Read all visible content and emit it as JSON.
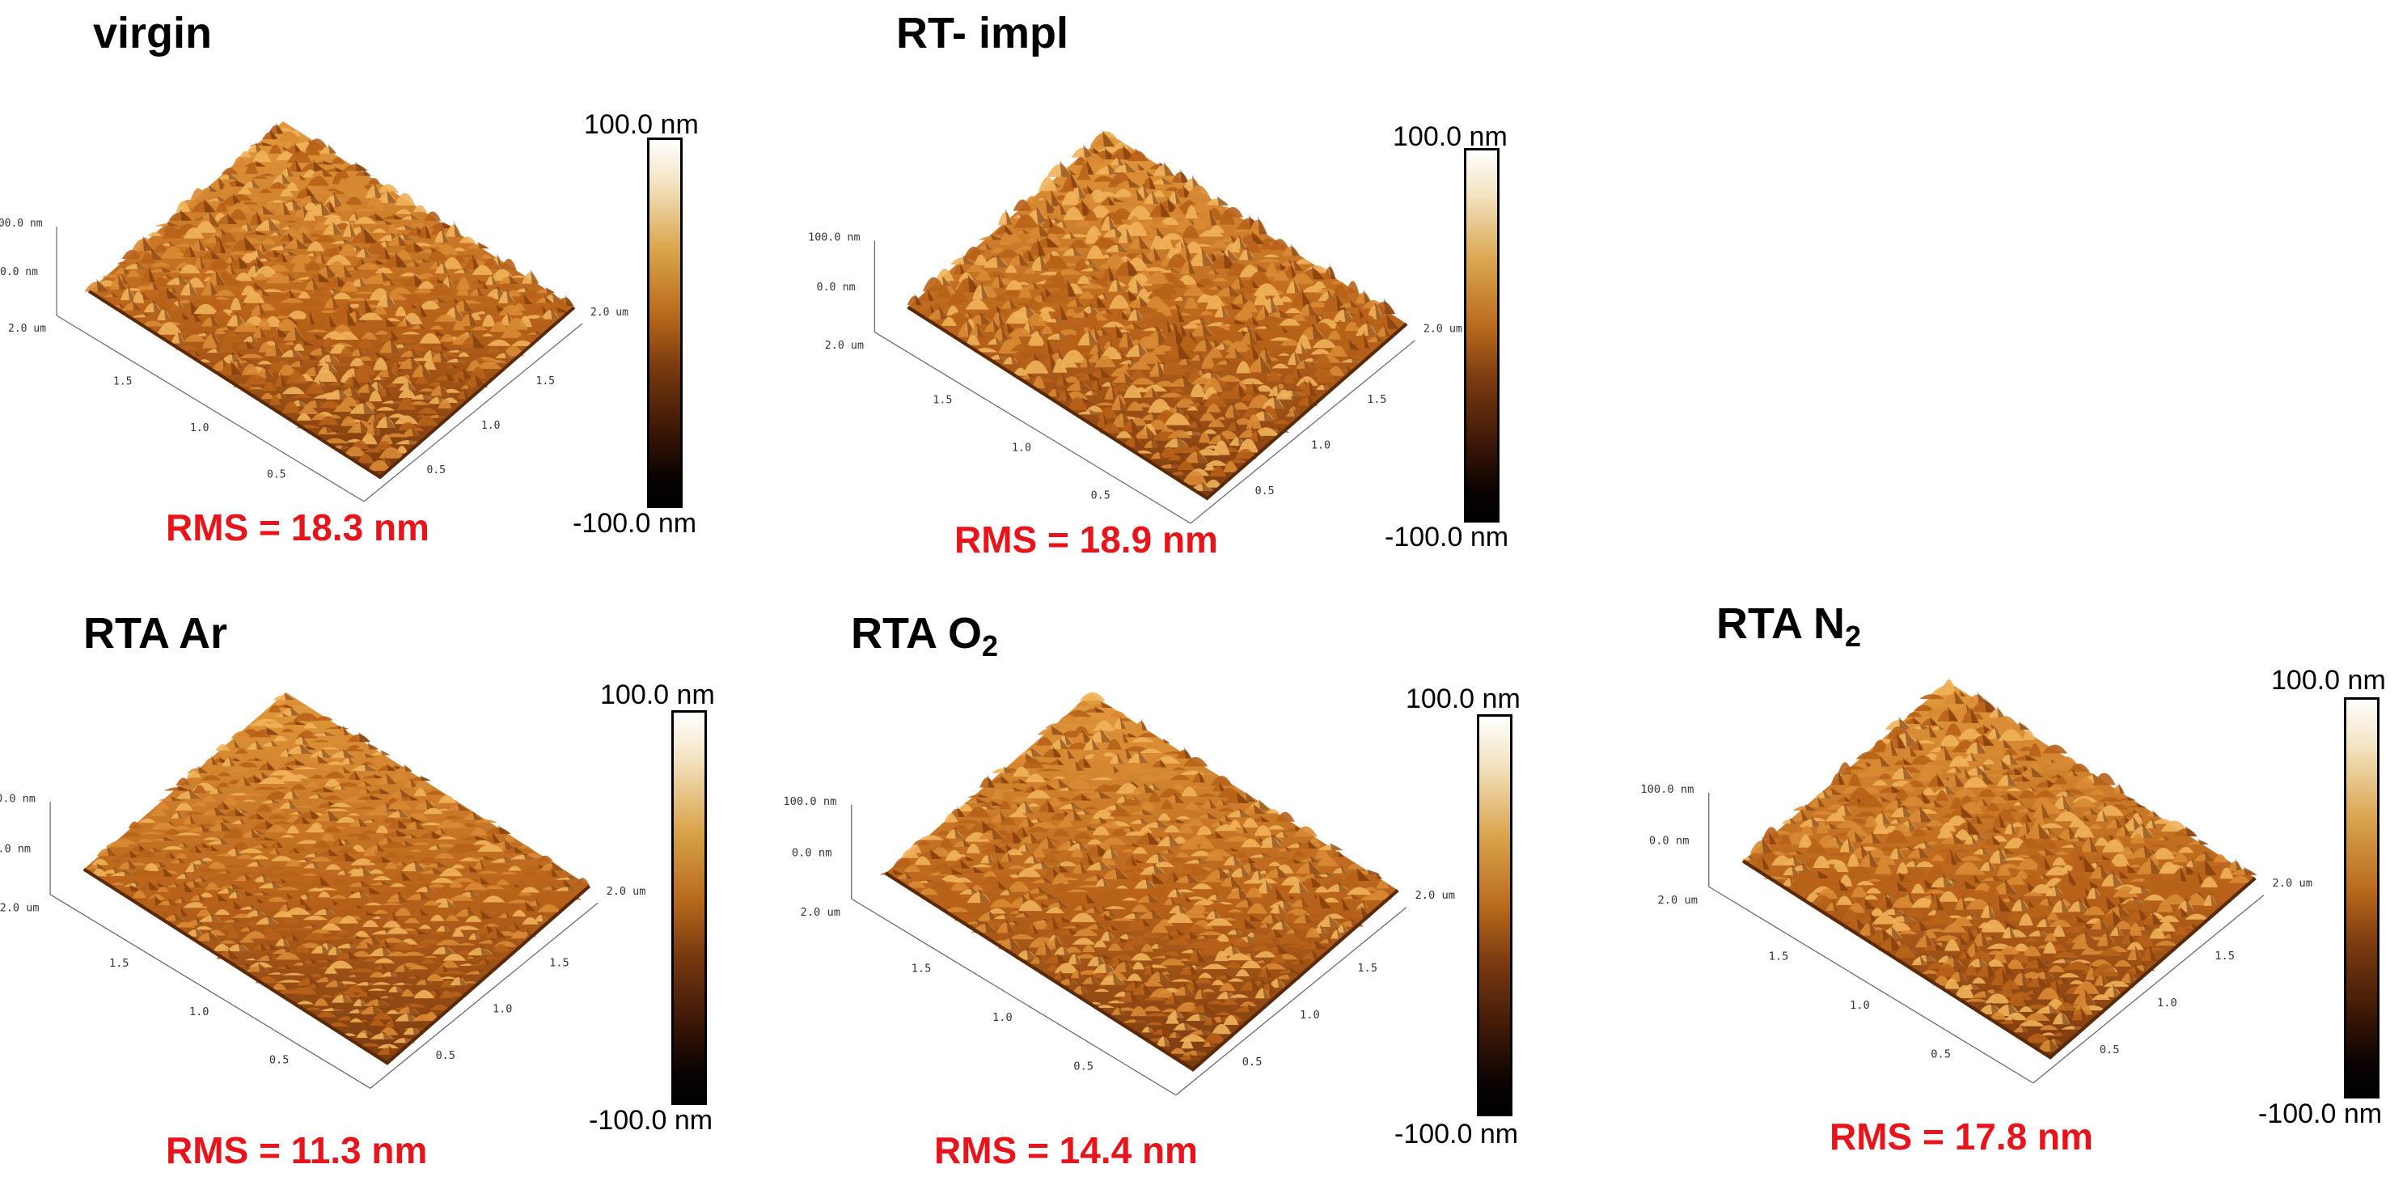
{
  "panels": [
    {
      "title": "virgin",
      "title_sub": "",
      "rms": "RMS = 18.3 nm",
      "scale_top": "100.0 nm",
      "scale_bottom": "-100.0 nm"
    },
    {
      "title": "RT- impl",
      "title_sub": "",
      "rms": "RMS = 18.9 nm",
      "scale_top": "100.0 nm",
      "scale_bottom": "-100.0 nm"
    },
    {
      "title": "RTA Ar",
      "title_sub": "",
      "rms": "RMS = 11.3 nm",
      "scale_top": "100.0 nm",
      "scale_bottom": "-100.0 nm"
    },
    {
      "title": "RTA O",
      "title_sub": "2",
      "rms": "RMS = 14.4 nm",
      "scale_top": "100.0 nm",
      "scale_bottom": "-100.0 nm"
    },
    {
      "title": "RTA N",
      "title_sub": "2",
      "rms": "RMS = 17.8 nm",
      "scale_top": "100.0 nm",
      "scale_bottom": "-100.0 nm"
    }
  ],
  "axis": {
    "z_top": "100.0 nm",
    "z_zero": "0.0 nm",
    "x_end": "2.0 um",
    "y_end": "2.0 um",
    "ticks": [
      "1.5",
      "1.0",
      "0.5"
    ]
  },
  "colors": {
    "rms": "#e8141c",
    "surface_dark": "#5a2a08",
    "surface_mid": "#b8621a",
    "surface_light": "#e39a3c"
  }
}
